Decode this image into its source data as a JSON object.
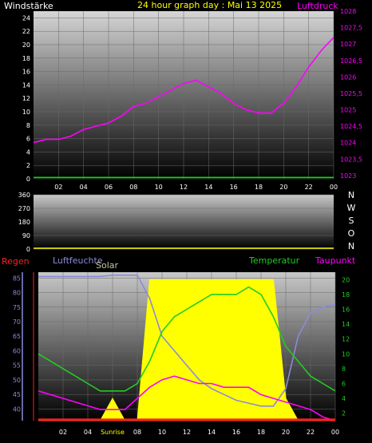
{
  "title": "24 hour graph day : Mai 13 2025",
  "colors": {
    "background": "#000000",
    "wind": "#00e000",
    "pressure": "#ff00ff",
    "humidity": "#8a8ade",
    "solar": "#ffff00",
    "temperature": "#22cc22",
    "dewpoint": "#ff00ff",
    "rain": "#ff2020",
    "text": "#ffffff",
    "title": "#ffff00"
  },
  "chart_data": [
    {
      "type": "line",
      "panel": "wind-pressure",
      "title": "24 hour graph day : Mai 13 2025",
      "left_label": "Windstärke",
      "right_label": "Luftdruck",
      "x": [
        0,
        1,
        2,
        3,
        4,
        5,
        6,
        7,
        8,
        9,
        10,
        11,
        12,
        13,
        14,
        15,
        16,
        17,
        18,
        19,
        20,
        21,
        22,
        23,
        24
      ],
      "x_tick_labels": [
        "02",
        "04",
        "06",
        "08",
        "10",
        "12",
        "14",
        "16",
        "18",
        "20",
        "22",
        "00"
      ],
      "y_left_ticks": [
        "0",
        "2",
        "4",
        "6",
        "8",
        "10",
        "12",
        "14",
        "16",
        "18",
        "20",
        "22",
        "24"
      ],
      "y_left_range": [
        0,
        25
      ],
      "y_right_ticks": [
        "1023",
        "1023,5",
        "1024",
        "1024,5",
        "1025",
        "1025,5",
        "1026",
        "1026,5",
        "1027",
        "1027,5",
        "1028"
      ],
      "y_right_range": [
        1022.9,
        1028
      ],
      "series": [
        {
          "axis": "left",
          "color_key": "wind",
          "values": [
            0.2,
            0.2,
            0.2,
            0.2,
            0.2,
            0.2,
            0.2,
            0.2,
            0.2,
            0.2,
            0.2,
            0.2,
            0.2,
            0.2,
            0.2,
            0.2,
            0.2,
            0.2,
            0.2,
            0.2,
            0.2,
            0.2,
            0.2,
            0.2,
            0.2
          ]
        },
        {
          "axis": "right",
          "color_key": "pressure",
          "values": [
            1024.0,
            1024.1,
            1024.1,
            1024.2,
            1024.4,
            1024.5,
            1024.6,
            1024.8,
            1025.1,
            1025.2,
            1025.4,
            1025.6,
            1025.8,
            1025.9,
            1025.7,
            1025.5,
            1025.2,
            1025.0,
            1024.9,
            1024.9,
            1025.2,
            1025.7,
            1026.3,
            1026.8,
            1027.2
          ]
        }
      ]
    },
    {
      "type": "line",
      "panel": "wind-direction",
      "left_ticks": [
        "0",
        "90",
        "180",
        "270",
        "360"
      ],
      "y_range": [
        0,
        360
      ],
      "right_labels": [
        "N",
        "W",
        "S",
        "O",
        "N"
      ],
      "x_tick_labels": []
    },
    {
      "type": "area",
      "panel": "climate",
      "legend": [
        "Regen",
        "Luftfeuchte",
        "Solar",
        "Temperatur",
        "Taupunkt"
      ],
      "x": [
        0,
        1,
        2,
        3,
        4,
        5,
        6,
        7,
        8,
        9,
        10,
        11,
        12,
        13,
        14,
        15,
        16,
        17,
        18,
        19,
        20,
        21,
        22,
        23,
        24
      ],
      "x_tick_labels": [
        "02",
        "04",
        "Sunrise",
        "08",
        "10",
        "12",
        "14",
        "16",
        "18",
        "20",
        "22",
        "00"
      ],
      "y_left_ticks": [
        "40",
        "45",
        "50",
        "55",
        "60",
        "65",
        "70",
        "75",
        "80",
        "85"
      ],
      "y_left_range": [
        36,
        87
      ],
      "y_right_ticks": [
        "2",
        "4",
        "6",
        "8",
        "10",
        "12",
        "14",
        "16",
        "18",
        "20"
      ],
      "y_right_range": [
        1,
        21
      ],
      "series": [
        {
          "name": "Luftfeuchte",
          "axis": "left",
          "color_key": "humidity",
          "values": [
            85.5,
            85.5,
            85.5,
            85.5,
            85.5,
            85.5,
            86,
            86,
            86,
            78,
            65,
            60,
            55,
            50,
            47,
            45,
            43,
            42,
            41,
            41,
            47,
            65,
            73,
            75,
            76
          ]
        },
        {
          "name": "Solar",
          "axis": "right",
          "color_key": "solar",
          "values": [
            0,
            0,
            0,
            0,
            0,
            0,
            4,
            0,
            0,
            20,
            20,
            20,
            20,
            20,
            20,
            20,
            20,
            20,
            20,
            20,
            4,
            0,
            0,
            0,
            0
          ]
        },
        {
          "name": "Temperatur",
          "axis": "right",
          "color_key": "temperature",
          "values": [
            10,
            9,
            8,
            7,
            6,
            5,
            5,
            5,
            6,
            9,
            13,
            15,
            16,
            17,
            18,
            18,
            18,
            19,
            18,
            15,
            11,
            9,
            7,
            6,
            5
          ]
        },
        {
          "name": "Taupunkt",
          "axis": "right",
          "color_key": "dewpoint",
          "values": [
            5,
            4.5,
            4,
            3.5,
            3,
            2.5,
            2.5,
            2.5,
            4,
            5.5,
            6.5,
            7,
            6.5,
            6,
            6,
            5.5,
            5.5,
            5.5,
            4.5,
            4,
            3.5,
            3,
            2.5,
            1.5,
            1
          ]
        },
        {
          "name": "Regen",
          "axis": "left",
          "color_key": "rain",
          "values": [
            36.3,
            36.3,
            36.3,
            36.3,
            36.3,
            36.3,
            36.3,
            36.3,
            36.3,
            36.3,
            36.3,
            36.3,
            36.3,
            36.3,
            36.3,
            36.3,
            36.3,
            36.3,
            36.3,
            36.3,
            36.3,
            36.3,
            36.3,
            36.3,
            36.3
          ]
        }
      ]
    }
  ]
}
